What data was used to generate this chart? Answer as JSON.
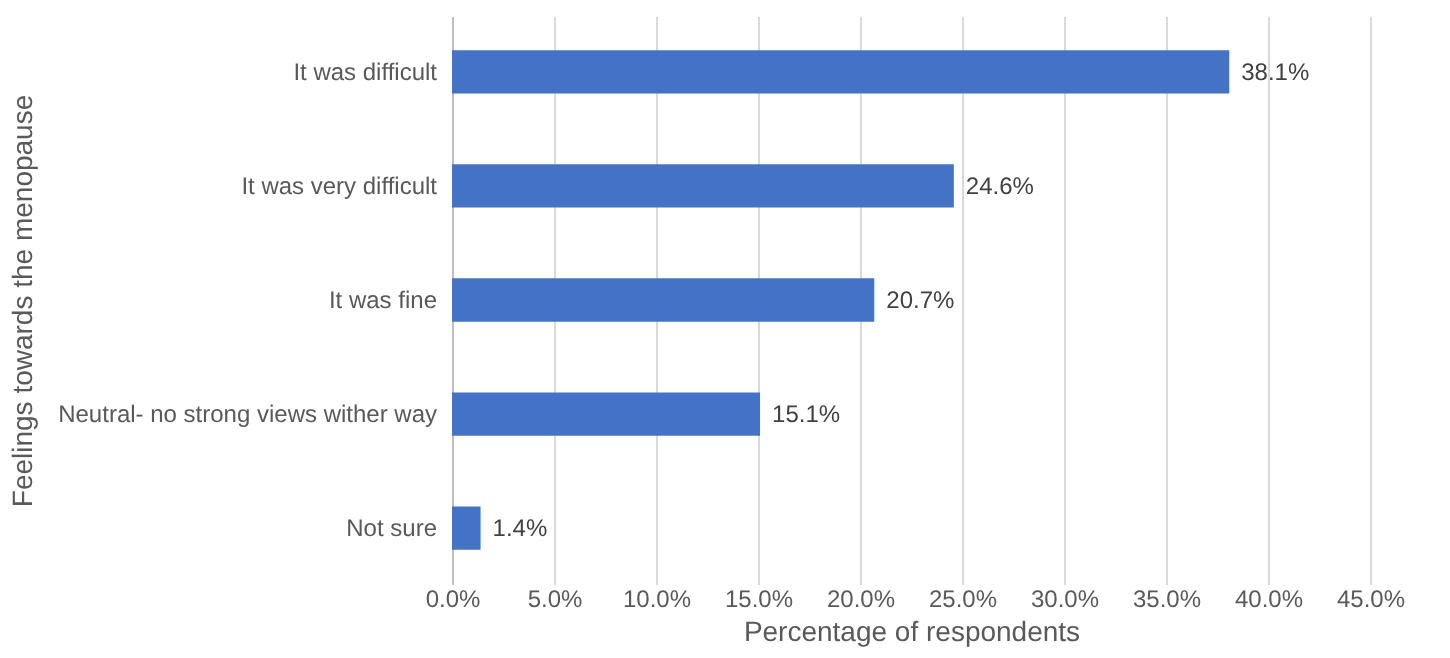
{
  "chart_data": {
    "type": "bar",
    "orientation": "horizontal",
    "ylabel": "Feelings towards the menopause",
    "xlabel": "Percentage of respondents",
    "categories": [
      "It was difficult",
      "It was very difficult",
      "It was fine",
      "Neutral- no strong views wither way",
      "Not sure"
    ],
    "values": [
      38.1,
      24.6,
      20.7,
      15.1,
      1.4
    ],
    "value_labels": [
      "38.1%",
      "24.6%",
      "20.7%",
      "15.1%",
      "1.4%"
    ],
    "color": "#4472c4",
    "xlim": [
      0,
      45
    ],
    "xticks": [
      {
        "value": 0,
        "label": "0.0%"
      },
      {
        "value": 5,
        "label": "5.0%"
      },
      {
        "value": 10,
        "label": "10.0%"
      },
      {
        "value": 15,
        "label": "15.0%"
      },
      {
        "value": 20,
        "label": "20.0%"
      },
      {
        "value": 25,
        "label": "25.0%"
      },
      {
        "value": 30,
        "label": "30.0%"
      },
      {
        "value": 35,
        "label": "35.0%"
      },
      {
        "value": 40,
        "label": "40.0%"
      },
      {
        "value": 45,
        "label": "45.0%"
      }
    ],
    "grid": "x"
  }
}
